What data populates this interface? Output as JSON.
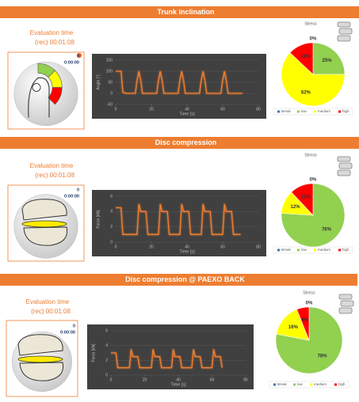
{
  "panels": [
    {
      "title": "Trunk inclination",
      "eval_label": "Evaluation time",
      "rec_time": "(rec) 00:01:08",
      "counter": 0,
      "counter_time": "0:00:00"
    },
    {
      "title": "Disc compression",
      "eval_label": "Evaluation time",
      "rec_time": "(rec) 00:01:08",
      "counter": 0,
      "counter_time": "0:00:00"
    },
    {
      "title": "Disc compression @ PAEXO BACK",
      "eval_label": "Evaluation time",
      "rec_time": "(rec) 00:01:08",
      "counter": 0,
      "counter_time": "0:00:00"
    }
  ],
  "chart_data": [
    {
      "type": "line",
      "x_label": "Time [s]",
      "y_label": "Angle [°]",
      "color": "#ed7d31",
      "grid": true,
      "x": [
        0,
        3,
        4,
        6,
        11,
        12,
        13,
        14,
        15,
        23,
        24,
        25,
        26,
        27,
        35,
        36,
        37,
        38,
        39,
        47,
        48,
        49,
        50,
        51,
        59,
        60,
        61,
        62,
        63,
        71
      ],
      "y": [
        100,
        100,
        5,
        0,
        0,
        60,
        100,
        60,
        0,
        0,
        60,
        100,
        60,
        0,
        0,
        60,
        100,
        60,
        0,
        0,
        60,
        100,
        60,
        0,
        0,
        60,
        100,
        60,
        0,
        0
      ],
      "xlim": [
        0,
        80
      ],
      "xticks": [
        0,
        20,
        40,
        60,
        80
      ],
      "ylim": [
        -50,
        150
      ],
      "yticks": [
        -50,
        0,
        50,
        100,
        150
      ]
    },
    {
      "type": "pie",
      "title": "Stress",
      "categories": [
        "Break",
        "low",
        "medium",
        "high"
      ],
      "colors": [
        "#4472c4",
        "#92d050",
        "#ffff00",
        "#ff0000"
      ],
      "values": [
        0,
        25,
        62,
        13
      ],
      "value_labels": [
        "0%",
        "25%",
        "62%",
        "13%"
      ]
    },
    {
      "type": "line",
      "x_label": "Time [s]",
      "y_label": "Force [kN]",
      "color": "#ed7d31",
      "grid": true,
      "x": [
        0,
        3,
        4,
        12,
        13,
        14,
        17,
        18,
        24,
        25,
        26,
        29,
        30,
        36,
        37,
        38,
        41,
        42,
        48,
        49,
        50,
        53,
        54,
        60,
        61,
        62,
        65,
        66,
        70
      ],
      "y": [
        4.5,
        4.5,
        1,
        1,
        5,
        4,
        4,
        1,
        1,
        5,
        4,
        4,
        1,
        1,
        5,
        4,
        4,
        1,
        1,
        5,
        4,
        4,
        1,
        1,
        5,
        4,
        4,
        1,
        1
      ],
      "xlim": [
        0,
        80
      ],
      "xticks": [
        0,
        20,
        40,
        60,
        80
      ],
      "ylim": [
        0,
        6
      ],
      "yticks": [
        0,
        2,
        4,
        6
      ]
    },
    {
      "type": "pie",
      "title": "Stress",
      "categories": [
        "Break",
        "low",
        "medium",
        "high"
      ],
      "colors": [
        "#4472c4",
        "#92d050",
        "#ffff00",
        "#ff0000"
      ],
      "values": [
        0,
        76,
        12,
        12
      ],
      "value_labels": [
        "0%",
        "76%",
        "12%",
        "12%"
      ]
    },
    {
      "type": "line",
      "x_label": "Time [s]",
      "y_label": "Force [kN]",
      "color": "#ed7d31",
      "grid": true,
      "x": [
        0,
        3,
        4,
        11,
        12,
        13,
        16,
        17,
        24,
        25,
        26,
        29,
        30,
        36,
        37,
        38,
        41,
        42,
        48,
        49,
        50,
        53,
        54,
        60,
        61,
        62,
        65,
        66
      ],
      "y": [
        3,
        3,
        1,
        1,
        3.5,
        2.5,
        2.5,
        1,
        1,
        3.5,
        2.5,
        2.5,
        1,
        1,
        3.5,
        2.5,
        2.5,
        1,
        1,
        3.5,
        2.5,
        2.5,
        1,
        1,
        3.5,
        2.5,
        2.5,
        1
      ],
      "xlim": [
        0,
        80
      ],
      "xticks": [
        0,
        20,
        40,
        60,
        80
      ],
      "ylim": [
        0,
        6
      ],
      "yticks": [
        0,
        2,
        4,
        6
      ]
    },
    {
      "type": "pie",
      "title": "Stress",
      "categories": [
        "Break",
        "low",
        "medium",
        "high"
      ],
      "colors": [
        "#4472c4",
        "#92d050",
        "#ffff00",
        "#ff0000"
      ],
      "values": [
        0,
        78,
        16,
        6
      ],
      "value_labels": [
        "0%",
        "78%",
        "16%",
        "6%"
      ]
    }
  ]
}
